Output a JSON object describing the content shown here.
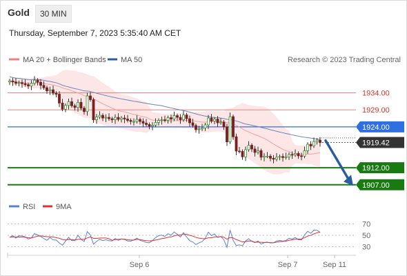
{
  "header": {
    "title": "Gold",
    "timeframe": "30 MIN"
  },
  "datetime": "Thursday, September 7, 2023 5:35:40 AM CET",
  "legend": {
    "items": [
      {
        "label": "MA 20 + Bollinger Bands",
        "color": "#f08080"
      },
      {
        "label": "MA 50",
        "color": "#2a5d9f"
      }
    ],
    "credit": "Research © 2023 Trading Central"
  },
  "rsi_legend": {
    "items": [
      {
        "label": "RSI",
        "color": "#5b7fd6"
      },
      {
        "label": "9MA",
        "color": "#e0312f"
      }
    ]
  },
  "colors": {
    "resistance": "#f08080",
    "pivot": "#2f6fe0",
    "support": "#1a7a12",
    "price_tag": "#333333",
    "arrow": "#2a5d9f",
    "band_fill": "#fde2e2",
    "ma50": "#6a82b8"
  },
  "chart_data": [
    {
      "type": "candlestick",
      "title": "Gold",
      "ylim": [
        1902.5,
        1941.0
      ],
      "x_ticks": [
        "Sep 6",
        "Sep 7",
        "Sep 11"
      ],
      "levels": [
        {
          "value": 1934.0,
          "label": "1934.00",
          "kind": "resistance"
        },
        {
          "value": 1929.0,
          "label": "1929.00",
          "kind": "resistance"
        },
        {
          "value": 1924.0,
          "label": "1924.00",
          "kind": "pivot"
        },
        {
          "value": 1912.0,
          "label": "1912.00",
          "kind": "support"
        },
        {
          "value": 1907.0,
          "label": "1907.00",
          "kind": "support"
        }
      ],
      "last_price": {
        "value": 1919.42,
        "label": "1919.42"
      },
      "forecast_arrow": {
        "from": 1920.0,
        "to": 1907.5
      },
      "close": [
        1937.5,
        1937.2,
        1936.8,
        1937.0,
        1936.7,
        1936.4,
        1936.0,
        1936.8,
        1937.7,
        1937.1,
        1936.2,
        1935.5,
        1934.6,
        1934.9,
        1933.9,
        1933.6,
        1931.0,
        1929.2,
        1930.3,
        1931.4,
        1930.2,
        1929.7,
        1931.2,
        1929.5,
        1928.5,
        1933.1,
        1932.0,
        1926.1,
        1926.9,
        1927.4,
        1926.6,
        1926.8,
        1926.4,
        1926.1,
        1926.8,
        1926.2,
        1926.6,
        1926.3,
        1925.9,
        1925.6,
        1925.6,
        1926.2,
        1925.6,
        1925.1,
        1924.7,
        1924.2,
        1924.5,
        1925.3,
        1925.9,
        1926.1,
        1925.9,
        1926.7,
        1926.3,
        1927.3,
        1926.8,
        1926.1,
        1927.5,
        1926.4,
        1925.2,
        1924.4,
        1923.2,
        1923.4,
        1923.7,
        1924.6,
        1926.6,
        1925.7,
        1926.3,
        1925.2,
        1925.4,
        1924.0,
        1919.6,
        1927.0,
        1921.1,
        1916.9,
        1916.8,
        1915.2,
        1917.3,
        1918.6,
        1917.5,
        1916.5,
        1917.0,
        1915.1,
        1915.4,
        1915.4,
        1914.8,
        1914.5,
        1915.1,
        1915.3,
        1915.0,
        1915.2,
        1915.9,
        1915.8,
        1916.2,
        1915.5,
        1915.4,
        1917.0,
        1918.9,
        1918.4,
        1919.7,
        1920.1,
        1919.4
      ],
      "rsi": {
        "ylim": [
          20,
          80
        ],
        "levels": [
          {
            "value": 70,
            "label": "70"
          },
          {
            "value": 50,
            "label": "50"
          },
          {
            "value": 30,
            "label": "30"
          }
        ],
        "rsi": [
          46.4,
          49.3,
          45.0,
          49.2,
          48.8,
          47.3,
          43.4,
          45.4,
          52.8,
          50.6,
          48.0,
          44.4,
          41.3,
          46.1,
          42.0,
          41.8,
          36.6,
          32.7,
          39.9,
          46.4,
          40.9,
          40.8,
          50.2,
          42.9,
          39.2,
          56.3,
          50.5,
          34.6,
          39.4,
          43.1,
          40.7,
          42.2,
          40.5,
          40.1,
          44.6,
          41.2,
          43.6,
          42.7,
          40.1,
          39.8,
          41.8,
          45.1,
          41.2,
          39.6,
          37.6,
          37.0,
          40.9,
          46.0,
          49.5,
          50.1,
          48.1,
          52.8,
          50.2,
          55.8,
          51.6,
          46.8,
          54.7,
          47.1,
          40.8,
          38.3,
          33.8,
          36.9,
          38.9,
          44.7,
          55.4,
          49.4,
          52.2,
          46.3,
          47.9,
          42.1,
          29.0,
          59.1,
          41.1,
          32.1,
          33.4,
          31.8,
          40.1,
          44.0,
          39.5,
          37.1,
          39.9,
          34.6,
          37.1,
          38.2,
          36.6,
          37.0,
          40.3,
          41.0,
          39.9,
          40.9,
          44.8,
          43.4,
          46.1,
          42.4,
          42.0,
          50.6,
          57.0,
          53.4,
          58.8,
          58.9,
          55.1
        ],
        "ma9": [
          46.5,
          47.1,
          46.8,
          47.0,
          46.9,
          46.6,
          45.8,
          45.4,
          46.8,
          48.6,
          49.0,
          48.3,
          47.4,
          47.5,
          47.0,
          46.0,
          44.8,
          42.7,
          41.8,
          42.7,
          42.3,
          41.7,
          42.9,
          43.3,
          42.8,
          45.4,
          47.2,
          44.8,
          44.4,
          45.2,
          45.3,
          45.3,
          44.0,
          41.3,
          42.4,
          43.0,
          43.5,
          43.3,
          42.2,
          41.8,
          41.8,
          42.9,
          42.5,
          41.4,
          40.7,
          40.3,
          40.7,
          41.7,
          42.8,
          44.3,
          45.0,
          46.5,
          47.1,
          48.9,
          50.3,
          50.4,
          52.1,
          51.7,
          49.9,
          48.6,
          46.3,
          45.1,
          44.3,
          43.9,
          45.6,
          45.7,
          47.2,
          47.2,
          47.7,
          46.7,
          43.0,
          46.2,
          45.5,
          42.5,
          40.6,
          38.4,
          38.9,
          40.1,
          39.9,
          37.9,
          38.2,
          37.8,
          37.5,
          37.6,
          37.2,
          36.9,
          38.1,
          39.0,
          39.3,
          39.8,
          41.4,
          42.1,
          43.3,
          43.4,
          43.6,
          45.9,
          48.6,
          49.9,
          52.4,
          54.4,
          55.6
        ]
      }
    }
  ]
}
